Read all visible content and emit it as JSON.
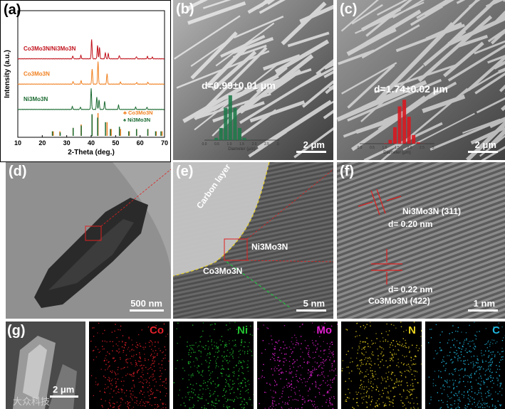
{
  "panels": {
    "a": {
      "label": "(a)"
    },
    "b": {
      "label": "(b)",
      "diameter": "d=0.99±0.01 μm",
      "scale": "2 μm",
      "hist_xlabel": "Diameter (μm)"
    },
    "c": {
      "label": "(c)",
      "diameter": "d=1.74±0.02 μm",
      "scale": "2 μm",
      "hist_xlabel": "Diameter (μm)"
    },
    "d": {
      "label": "(d)",
      "scale": "500 nm"
    },
    "e": {
      "label": "(e)",
      "scale": "5 nm",
      "carbon": "Carbon layer",
      "ni": "Ni3Mo3N",
      "co": "Co3Mo3N"
    },
    "f": {
      "label": "(f)",
      "scale": "1 nm",
      "ni_plane": "Ni3Mo3N (311)",
      "ni_d": "d= 0.20 nm",
      "co_d": "d= 0.22  nm",
      "co_plane": "Co3Mo3N (422)"
    },
    "g": {
      "label": "(g)",
      "scale": "2 μm",
      "maps": [
        {
          "name": "Co",
          "color": "#e0202a"
        },
        {
          "name": "Ni",
          "color": "#22c030"
        },
        {
          "name": "Mo",
          "color": "#e020d0"
        },
        {
          "name": "N",
          "color": "#e6d020"
        },
        {
          "name": "C",
          "color": "#20b8e0"
        }
      ]
    },
    "watermark": "大众科技"
  },
  "chart_data": {
    "type": "line",
    "title": "",
    "xlabel": "2-Theta (deg.)",
    "ylabel": "Intensity (a.u.)",
    "xlim": [
      10,
      70
    ],
    "xticks": [
      10,
      20,
      30,
      40,
      50,
      60,
      70
    ],
    "series": [
      {
        "name": "Co3Mo3N/Ni3Mo3N",
        "color": "#c0101a",
        "offset": 4,
        "peaks": [
          [
            32.5,
            0.1
          ],
          [
            35.8,
            0.12
          ],
          [
            40.2,
            0.7
          ],
          [
            42.6,
            0.48
          ],
          [
            43.4,
            0.4
          ],
          [
            45.8,
            0.22
          ],
          [
            47.0,
            0.18
          ],
          [
            51.5,
            0.12
          ],
          [
            58.5,
            0.08
          ],
          [
            63.0,
            0.08
          ],
          [
            65.0,
            0.06
          ]
        ]
      },
      {
        "name": "Co3Mo3N",
        "color": "#f08020",
        "offset": 3,
        "peaks": [
          [
            32.6,
            0.1
          ],
          [
            35.9,
            0.12
          ],
          [
            40.4,
            0.55
          ],
          [
            42.8,
            0.8
          ],
          [
            46.5,
            0.38
          ],
          [
            52.0,
            0.08
          ],
          [
            58.6,
            0.06
          ],
          [
            63.2,
            0.07
          ]
        ]
      },
      {
        "name": "Ni3Mo3N",
        "color": "#1a6a30",
        "offset": 2,
        "peaks": [
          [
            32.3,
            0.1
          ],
          [
            35.6,
            0.08
          ],
          [
            40.0,
            0.75
          ],
          [
            42.3,
            0.45
          ],
          [
            43.2,
            0.35
          ],
          [
            45.5,
            0.28
          ],
          [
            51.2,
            0.15
          ],
          [
            58.2,
            0.08
          ],
          [
            62.8,
            0.08
          ]
        ]
      }
    ],
    "reference": [
      {
        "name": "Co3Mo3N",
        "color": "#f08020",
        "symbol": "♣",
        "sticks": [
          [
            24.5,
            0.2
          ],
          [
            27.2,
            0.2
          ],
          [
            32.6,
            0.35
          ],
          [
            35.9,
            0.5
          ],
          [
            40.4,
            0.9
          ],
          [
            42.8,
            1.0
          ],
          [
            46.5,
            0.6
          ],
          [
            48.2,
            0.3
          ],
          [
            52.0,
            0.3
          ],
          [
            55.6,
            0.2
          ],
          [
            58.6,
            0.3
          ],
          [
            63.2,
            0.3
          ],
          [
            66.6,
            0.2
          ],
          [
            69.0,
            0.2
          ]
        ]
      },
      {
        "name": "Ni3Mo3N",
        "color": "#1a6a30",
        "symbol": "♠",
        "sticks": [
          [
            23.8,
            0.2
          ],
          [
            27.0,
            0.15
          ],
          [
            32.3,
            0.35
          ],
          [
            35.6,
            0.45
          ],
          [
            40.0,
            0.95
          ],
          [
            42.3,
            0.8
          ],
          [
            45.5,
            0.6
          ],
          [
            47.5,
            0.3
          ],
          [
            51.2,
            0.4
          ],
          [
            55.0,
            0.2
          ],
          [
            58.2,
            0.3
          ],
          [
            62.8,
            0.3
          ],
          [
            66.0,
            0.2
          ],
          [
            68.2,
            0.2
          ]
        ]
      }
    ],
    "legend": [
      {
        "name": "Co3Mo3N",
        "color": "#f08020",
        "symbol": "♣"
      },
      {
        "name": "Ni3Mo3N",
        "color": "#1a6a30",
        "symbol": "♠"
      }
    ]
  }
}
